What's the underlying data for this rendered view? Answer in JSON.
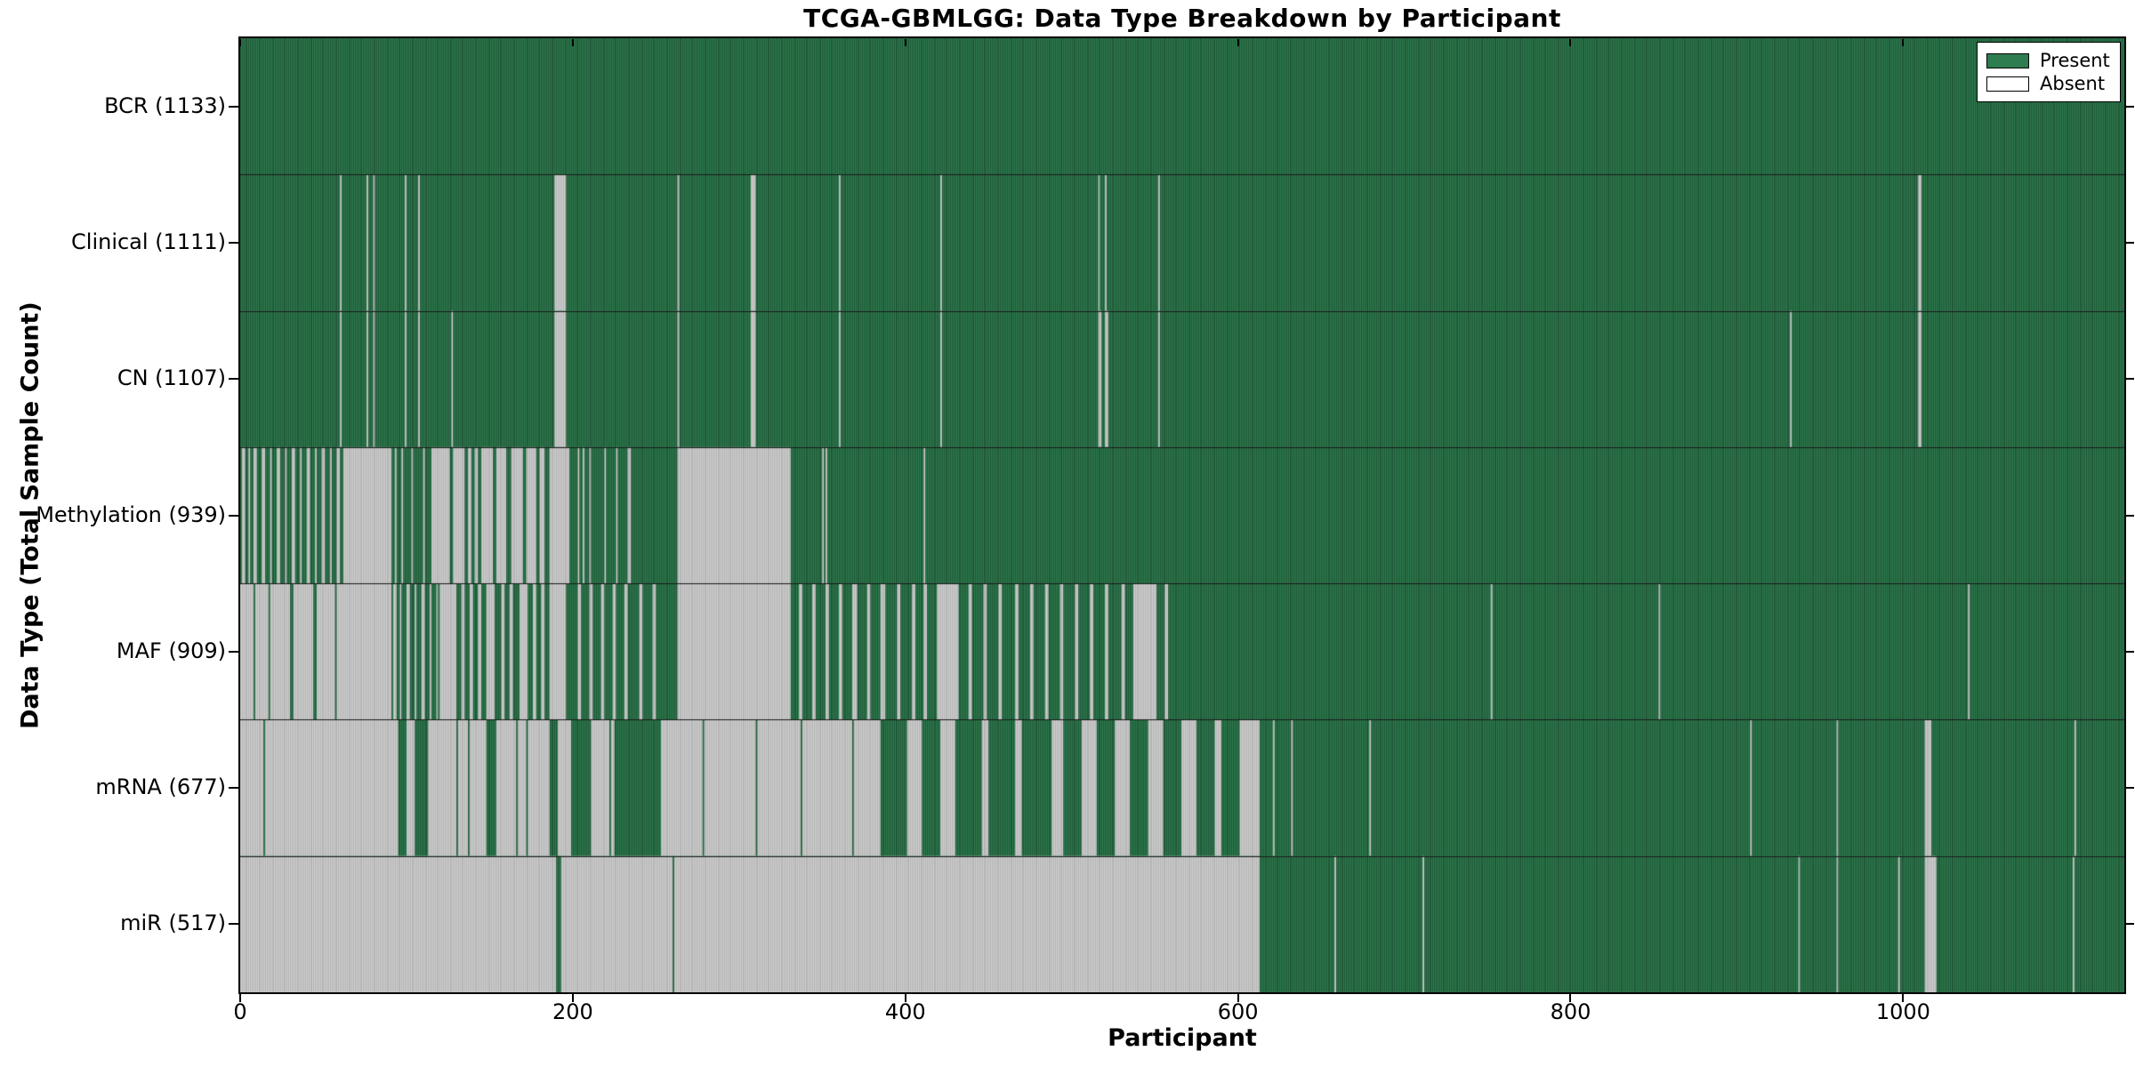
{
  "chart_data": {
    "type": "heatmap",
    "title": "TCGA-GBMLGG: Data Type Breakdown by Participant",
    "xlabel": "Participant",
    "ylabel": "Data Type (Total Sample Count)",
    "xlim": [
      0,
      1133
    ],
    "x_ticks": [
      0,
      200,
      400,
      600,
      800,
      1000
    ],
    "grid": "row-separators-only",
    "legend_position": "upper-right",
    "legend_items": [
      {
        "label": "Present",
        "color": "#2e7d50"
      },
      {
        "label": "Absent",
        "color": "#ffffff"
      }
    ],
    "colors": {
      "present": "#2e7d50",
      "absent": "#cfcfcf",
      "present_edge": "rgba(0,0,0,0.30)",
      "absent_edge": "rgba(0,0,0,0.13)",
      "row_separator": "#1a1a1a"
    },
    "rows": [
      {
        "label": "BCR (1133)",
        "data_type": "BCR",
        "present_count": 1133,
        "absent_intervals": []
      },
      {
        "label": "Clinical (1111)",
        "data_type": "Clinical",
        "present_count": 1111,
        "absent_intervals": [
          [
            60,
            61
          ],
          [
            76,
            77
          ],
          [
            80,
            81
          ],
          [
            99,
            100
          ],
          [
            107,
            108
          ],
          [
            189,
            196
          ],
          [
            263,
            264
          ],
          [
            307,
            310
          ],
          [
            360,
            361
          ],
          [
            421,
            422
          ],
          [
            516,
            517
          ],
          [
            520,
            521
          ],
          [
            552,
            553
          ],
          [
            1009,
            1011
          ]
        ]
      },
      {
        "label": "CN (1107)",
        "data_type": "CN",
        "present_count": 1107,
        "absent_intervals": [
          [
            60,
            61
          ],
          [
            76,
            77
          ],
          [
            80,
            81
          ],
          [
            99,
            100
          ],
          [
            107,
            108
          ],
          [
            127,
            128
          ],
          [
            189,
            196
          ],
          [
            263,
            264
          ],
          [
            307,
            310
          ],
          [
            360,
            361
          ],
          [
            421,
            422
          ],
          [
            516,
            518
          ],
          [
            520,
            522
          ],
          [
            552,
            553
          ],
          [
            932,
            933
          ],
          [
            1009,
            1011
          ]
        ]
      },
      {
        "label": "Methylation (939)",
        "data_type": "Methylation",
        "present_count": 939,
        "absent_intervals": [
          [
            1,
            3
          ],
          [
            5,
            6
          ],
          [
            8,
            10
          ],
          [
            13,
            15
          ],
          [
            18,
            19
          ],
          [
            22,
            24
          ],
          [
            27,
            28
          ],
          [
            31,
            33
          ],
          [
            36,
            37
          ],
          [
            40,
            42
          ],
          [
            45,
            46
          ],
          [
            49,
            51
          ],
          [
            54,
            55
          ],
          [
            58,
            60
          ],
          [
            62,
            91
          ],
          [
            93,
            94
          ],
          [
            97,
            98
          ],
          [
            103,
            104
          ],
          [
            110,
            111
          ],
          [
            115,
            126
          ],
          [
            128,
            135
          ],
          [
            137,
            139
          ],
          [
            141,
            143
          ],
          [
            145,
            152
          ],
          [
            154,
            160
          ],
          [
            163,
            170
          ],
          [
            172,
            178
          ],
          [
            180,
            183
          ],
          [
            186,
            198
          ],
          [
            203,
            204
          ],
          [
            206,
            207
          ],
          [
            210,
            211
          ],
          [
            219,
            220
          ],
          [
            226,
            227
          ],
          [
            233,
            235
          ],
          [
            263,
            331
          ],
          [
            350,
            351
          ],
          [
            352,
            353
          ],
          [
            411,
            412
          ]
        ]
      },
      {
        "label": "MAF (909)",
        "data_type": "MAF",
        "present_count": 909,
        "absent_intervals": [
          [
            0,
            8
          ],
          [
            9,
            17
          ],
          [
            18,
            30
          ],
          [
            32,
            44
          ],
          [
            46,
            57
          ],
          [
            58,
            91
          ],
          [
            92,
            94
          ],
          [
            96,
            97
          ],
          [
            100,
            102
          ],
          [
            105,
            106
          ],
          [
            109,
            111
          ],
          [
            114,
            115
          ],
          [
            118,
            119
          ],
          [
            120,
            130
          ],
          [
            133,
            135
          ],
          [
            138,
            140
          ],
          [
            143,
            145
          ],
          [
            148,
            153
          ],
          [
            157,
            159
          ],
          [
            162,
            164
          ],
          [
            168,
            173
          ],
          [
            176,
            178
          ],
          [
            181,
            183
          ],
          [
            186,
            196
          ],
          [
            203,
            205
          ],
          [
            210,
            212
          ],
          [
            217,
            219
          ],
          [
            224,
            226
          ],
          [
            231,
            233
          ],
          [
            240,
            242
          ],
          [
            248,
            250
          ],
          [
            263,
            331
          ],
          [
            336,
            338
          ],
          [
            344,
            346
          ],
          [
            352,
            354
          ],
          [
            360,
            362
          ],
          [
            368,
            371
          ],
          [
            377,
            379
          ],
          [
            385,
            388
          ],
          [
            395,
            397
          ],
          [
            404,
            406
          ],
          [
            411,
            413
          ],
          [
            419,
            432
          ],
          [
            438,
            440
          ],
          [
            447,
            449
          ],
          [
            456,
            458
          ],
          [
            466,
            468
          ],
          [
            475,
            477
          ],
          [
            484,
            486
          ],
          [
            493,
            495
          ],
          [
            502,
            504
          ],
          [
            511,
            513
          ],
          [
            520,
            522
          ],
          [
            530,
            532
          ],
          [
            537,
            551
          ],
          [
            556,
            558
          ],
          [
            752,
            753
          ],
          [
            853,
            854
          ],
          [
            1039,
            1040
          ]
        ]
      },
      {
        "label": "mRNA (677)",
        "data_type": "mRNA",
        "present_count": 677,
        "absent_intervals": [
          [
            0,
            14
          ],
          [
            15,
            95
          ],
          [
            100,
            105
          ],
          [
            113,
            130
          ],
          [
            131,
            137
          ],
          [
            138,
            148
          ],
          [
            154,
            166
          ],
          [
            167,
            172
          ],
          [
            173,
            186
          ],
          [
            191,
            199
          ],
          [
            211,
            222
          ],
          [
            223,
            225
          ],
          [
            253,
            278
          ],
          [
            279,
            310
          ],
          [
            311,
            337
          ],
          [
            338,
            368
          ],
          [
            369,
            385
          ],
          [
            401,
            410
          ],
          [
            421,
            430
          ],
          [
            446,
            450
          ],
          [
            466,
            470
          ],
          [
            488,
            495
          ],
          [
            506,
            515
          ],
          [
            526,
            535
          ],
          [
            546,
            555
          ],
          [
            566,
            575
          ],
          [
            586,
            590
          ],
          [
            601,
            613
          ],
          [
            621,
            622
          ],
          [
            632,
            633
          ],
          [
            679,
            680
          ],
          [
            908,
            909
          ],
          [
            960,
            961
          ],
          [
            1013,
            1017
          ],
          [
            1103,
            1104
          ]
        ]
      },
      {
        "label": "miR (517)",
        "data_type": "miR",
        "present_count": 517,
        "absent_intervals": [
          [
            0,
            190
          ],
          [
            193,
            260
          ],
          [
            261,
            613
          ],
          [
            658,
            659
          ],
          [
            711,
            712
          ],
          [
            937,
            938
          ],
          [
            960,
            961
          ],
          [
            997,
            998
          ],
          [
            1013,
            1020
          ],
          [
            1102,
            1103
          ]
        ]
      }
    ]
  }
}
